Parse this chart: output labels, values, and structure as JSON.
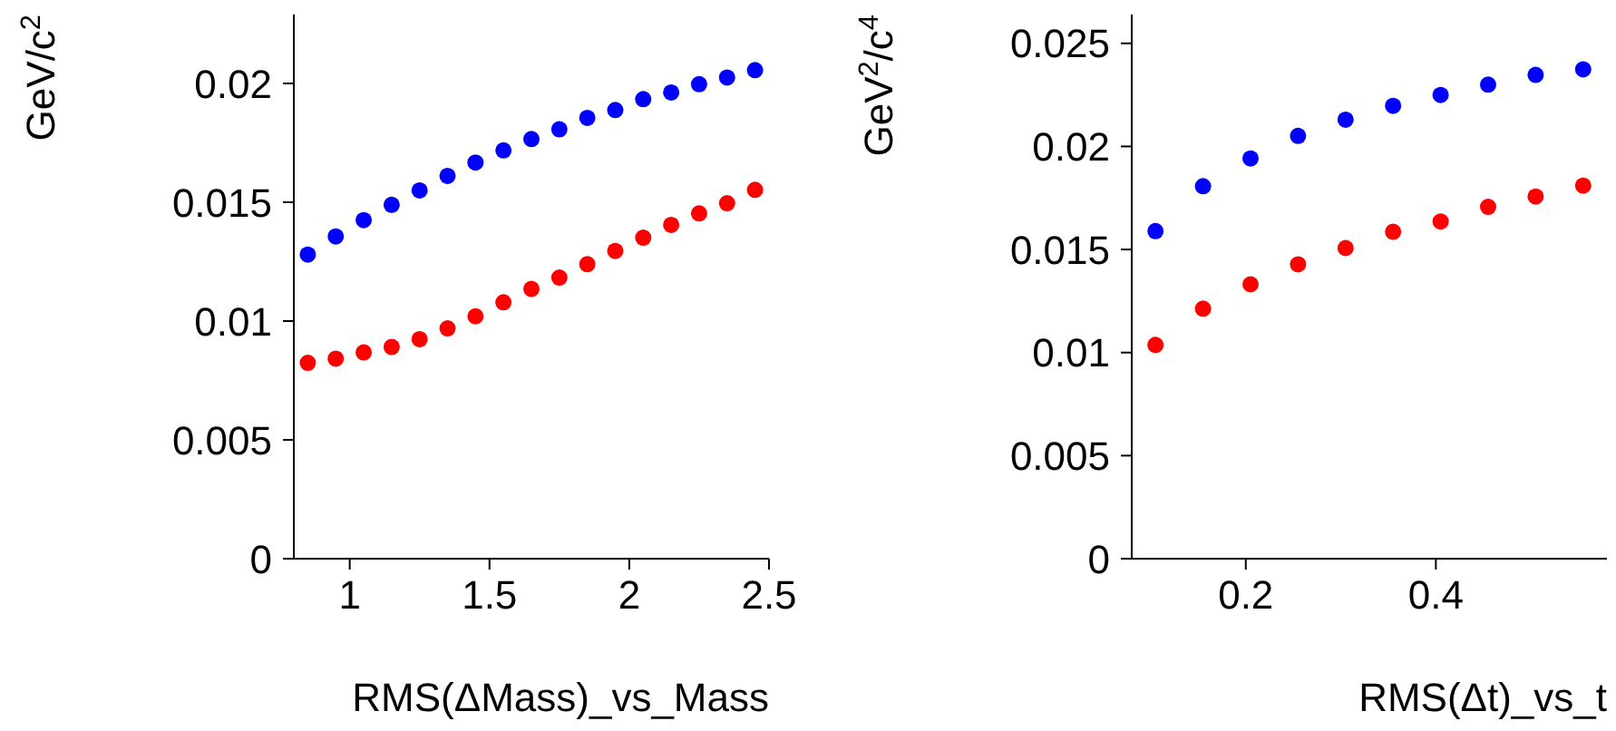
{
  "chart_data": [
    {
      "type": "scatter",
      "xlabel": "RMS(ΔMass)_vs_Mass",
      "ylabel": "GeV/c$^{2}$",
      "marker": "circle",
      "x": [
        0.85,
        0.95,
        1.05,
        1.15,
        1.25,
        1.35,
        1.45,
        1.55,
        1.65,
        1.75,
        1.85,
        1.95,
        2.05,
        2.15,
        2.25,
        2.35,
        2.45
      ],
      "series": [
        {
          "color": "#0000ff",
          "values": [
            0.0128,
            0.01356,
            0.01425,
            0.01489,
            0.0155,
            0.01611,
            0.01667,
            0.01718,
            0.01766,
            0.01807,
            0.01855,
            0.01888,
            0.01934,
            0.01962,
            0.01997,
            0.02025,
            0.02056
          ]
        },
        {
          "color": "#ff0000",
          "values": [
            0.00824,
            0.00842,
            0.00868,
            0.00891,
            0.00924,
            0.00969,
            0.0102,
            0.01079,
            0.01135,
            0.01183,
            0.01239,
            0.01295,
            0.01351,
            0.01405,
            0.01453,
            0.01496,
            0.01552
          ]
        }
      ],
      "xlim": [
        0.8,
        2.5
      ],
      "xticks": [
        1,
        1.5,
        2,
        2.5
      ],
      "ylim": [
        0,
        0.0229
      ],
      "yticks": [
        0,
        0.005,
        0.01,
        0.015,
        0.02
      ]
    },
    {
      "type": "scatter",
      "xlabel": "RMS(Δt)_vs_t",
      "ylabel": "GeV$^{2}$/c$^{4}$",
      "marker": "circle",
      "x": [
        0.105,
        0.155,
        0.205,
        0.255,
        0.305,
        0.355,
        0.405,
        0.455,
        0.505,
        0.555
      ],
      "series": [
        {
          "color": "#0000ff",
          "values": [
            0.01589,
            0.01807,
            0.01942,
            0.02051,
            0.0213,
            0.02197,
            0.0225,
            0.023,
            0.02347,
            0.02374
          ]
        },
        {
          "color": "#ff0000",
          "values": [
            0.01037,
            0.01213,
            0.01331,
            0.01428,
            0.01507,
            0.01586,
            0.01636,
            0.01707,
            0.01757,
            0.0181
          ]
        }
      ],
      "xlim": [
        0.08,
        0.58
      ],
      "xticks": [
        0.2,
        0.4
      ],
      "ylim": [
        0,
        0.0264
      ],
      "yticks": [
        0,
        0.005,
        0.01,
        0.015,
        0.02,
        0.025
      ]
    }
  ]
}
